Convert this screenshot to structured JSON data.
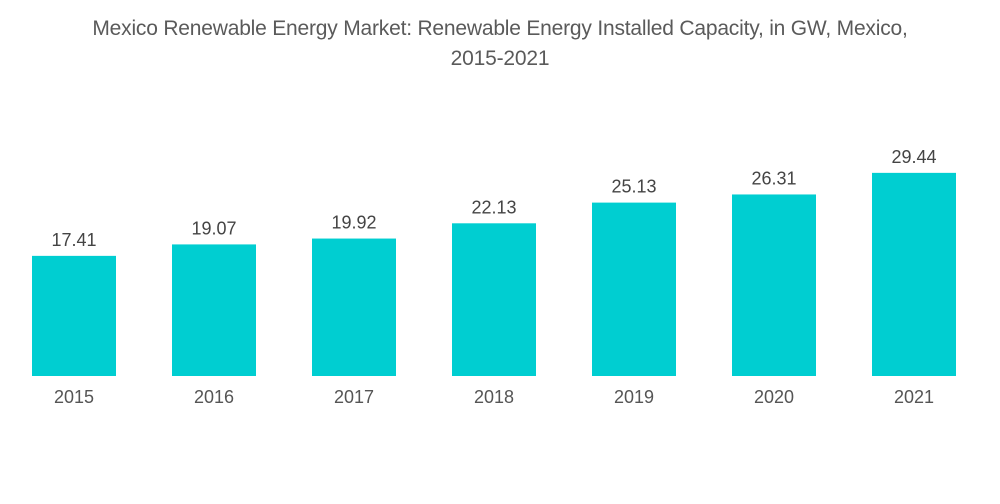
{
  "chart_data": {
    "type": "bar",
    "title": "Mexico Renewable Energy Market: Renewable Energy Installed Capacity, in GW, Mexico, 2015-2021",
    "title_lines": [
      "Mexico Renewable Energy Market: Renewable Energy Installed Capacity, in GW, Mexico,",
      "2015-2021"
    ],
    "categories": [
      "2015",
      "2016",
      "2017",
      "2018",
      "2019",
      "2020",
      "2021"
    ],
    "values": [
      17.41,
      19.07,
      19.92,
      22.13,
      25.13,
      26.31,
      29.44
    ],
    "value_labels": [
      "17.41",
      "19.07",
      "19.92",
      "22.13",
      "25.13",
      "26.31",
      "29.44"
    ],
    "xlabel": "",
    "ylabel": "",
    "ylim": [
      0,
      29.44
    ],
    "grid": false,
    "legend": "none",
    "bar_color": "#00CED1"
  }
}
